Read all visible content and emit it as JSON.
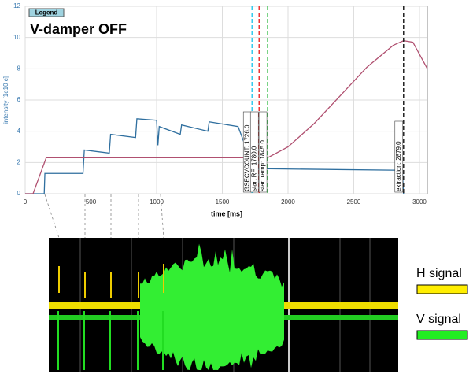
{
  "chart_data": {
    "type": "line",
    "title": "V-damper OFF",
    "legend_button": "Legend",
    "x_label": "time [ms]",
    "y_label": "intensity [1e10 c]",
    "xlim": [
      0,
      3060
    ],
    "ylim": [
      0,
      12
    ],
    "xticks": [
      0,
      500,
      1000,
      1500,
      2000,
      2500,
      3000
    ],
    "yticks": [
      0,
      2,
      4,
      6,
      8,
      10,
      12
    ],
    "grid": true,
    "series": [
      {
        "color": "#2f6f9f",
        "x": [
          0,
          145,
          150,
          440,
          450,
          640,
          650,
          840,
          850,
          1000,
          1010,
          1020,
          1180,
          1190,
          1390,
          1400,
          1620,
          1700,
          1760,
          1780,
          2870,
          2879
        ],
        "values": [
          0,
          0,
          1.3,
          1.3,
          2.8,
          2.6,
          3.8,
          3.6,
          4.8,
          4.7,
          3.1,
          4.3,
          3.8,
          4.4,
          4.0,
          4.6,
          4.3,
          2.5,
          2.1,
          1.6,
          1.5,
          0
        ]
      },
      {
        "color": "#b05070",
        "x": [
          0,
          60,
          160,
          1845,
          2000,
          2200,
          2400,
          2600,
          2800,
          2879,
          2950,
          3060
        ],
        "values": [
          0,
          0,
          2.3,
          2.3,
          3.0,
          4.5,
          6.3,
          8.1,
          9.5,
          9.8,
          9.7,
          8.0
        ]
      }
    ],
    "markers": [
      {
        "x": 1726,
        "label": "GSECVCOUNT: 1726.0",
        "color": "#33ccee"
      },
      {
        "x": 1780,
        "label": "start RF: 1780.0",
        "color": "#ee3333"
      },
      {
        "x": 1845,
        "label": "start ramp: 1845.0",
        "color": "#33bb44"
      },
      {
        "x": 2879,
        "label": "extraction: 2879.0",
        "color": "#222222"
      }
    ]
  },
  "scope": {
    "legend": [
      {
        "label": "H signal",
        "color": "#ffee00"
      },
      {
        "label": "V signal",
        "color": "#22ee22"
      }
    ]
  }
}
